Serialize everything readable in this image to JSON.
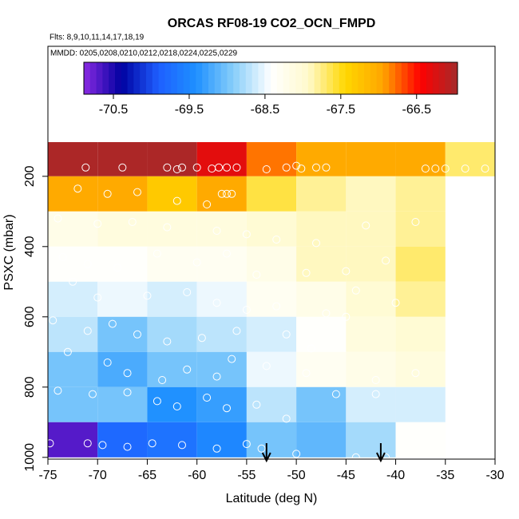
{
  "chart_data": {
    "type": "heatmap",
    "title": "ORCAS RF08-19 CO2_OCN_FMPD",
    "subtitle": "Flts: 8,9,10,11,14,17,18,19",
    "annotation": "MMDD: 0205,0208,0210,0212,0218,0224,0225,0229",
    "x_label": "Latitude (deg N)",
    "y_label": "PSXC (mbar)",
    "xlim": [
      -75,
      -30
    ],
    "xticks": [
      -75,
      -70,
      -65,
      -60,
      -55,
      -50,
      -45,
      -40,
      -35,
      -30
    ],
    "ylim": [
      -170,
      1005
    ],
    "yticks": [
      200,
      400,
      600,
      800,
      1000
    ],
    "zlim": [
      -70.89,
      -65.96
    ],
    "zticks": [
      -70.5,
      -69.5,
      -68.5,
      -67.5,
      -66.5
    ],
    "colormap": [
      "#8a2be2",
      "#0000a0",
      "#1e5fff",
      "#1e90ff",
      "#87cefa",
      "#ffffff",
      "#fffacd",
      "#ffd700",
      "#ffa500",
      "#ff0000",
      "#a52a2a"
    ],
    "x_edges": [
      -75,
      -70,
      -65,
      -60,
      -55,
      -50,
      -45,
      -40,
      -35,
      -30
    ],
    "y_edges": [
      100,
      200,
      300,
      400,
      500,
      600,
      700,
      800,
      900,
      1000
    ],
    "values": [
      [
        -66.0,
        -66.0,
        -66.0,
        -66.3,
        -66.8,
        -67.0,
        -67.0,
        -67.0,
        -67.7
      ],
      [
        -67.0,
        -67.0,
        -67.3,
        -67.0,
        -67.6,
        -67.8,
        -67.9,
        -67.8,
        null
      ],
      [
        -68.2,
        -68.1,
        -68.1,
        -68.1,
        -68.0,
        -67.9,
        -67.9,
        -67.8,
        null
      ],
      [
        -68.4,
        -68.4,
        -68.3,
        -68.3,
        -68.2,
        -67.9,
        -67.9,
        -67.7,
        null
      ],
      [
        -68.6,
        -68.5,
        -68.6,
        -68.5,
        -68.3,
        -68.2,
        -68.0,
        -67.8,
        null
      ],
      [
        -68.7,
        -69.0,
        -68.8,
        -68.7,
        -68.6,
        -68.4,
        -68.1,
        -68.0,
        null
      ],
      [
        -69.0,
        -69.2,
        -69.0,
        -69.0,
        -68.5,
        -68.3,
        -68.2,
        -68.1,
        null
      ],
      [
        -69.0,
        -69.0,
        -69.4,
        -69.3,
        -68.7,
        -69.0,
        -68.6,
        -68.6,
        null
      ],
      [
        -70.7,
        -69.8,
        -69.7,
        -69.5,
        -69.0,
        -69.1,
        -68.8,
        -68.4,
        null
      ]
    ],
    "points": {
      "x": [
        -71.2,
        -67.5,
        -63,
        -62,
        -61.5,
        -60,
        -58.5,
        -57.8,
        -57,
        -56,
        -53,
        -51,
        -50,
        -49.5,
        -48,
        -47,
        -37,
        -36,
        -35,
        -33,
        -31,
        -72,
        -69,
        -66,
        -62,
        -59,
        -57.5,
        -57,
        -56.5,
        -74,
        -70,
        -66.5,
        -63,
        -58,
        -55,
        -52,
        -48,
        -43,
        -38,
        -73.5,
        -71,
        -68,
        -64,
        -60,
        -57,
        -54,
        -49,
        -45,
        -41,
        -72.5,
        -70,
        -65,
        -61,
        -58,
        -55,
        -52,
        -47,
        -44,
        -40,
        -74.5,
        -71,
        -68.5,
        -66,
        -63,
        -59.5,
        -56,
        -51,
        -48.5,
        -45,
        -73,
        -69,
        -67,
        -63.5,
        -61,
        -58,
        -56.5,
        -53,
        -49,
        -42,
        -38,
        -74,
        -70.5,
        -67,
        -64,
        -62,
        -59,
        -57,
        -54,
        -51,
        -46,
        -42,
        -74.8,
        -71,
        -69.5,
        -67,
        -64.5,
        -61.5,
        -58,
        -55,
        -53.5,
        -50,
        -44,
        -41
      ],
      "y": [
        175,
        175,
        175,
        180,
        175,
        175,
        178,
        175,
        175,
        175,
        180,
        175,
        170,
        178,
        175,
        175,
        178,
        178,
        178,
        178,
        178,
        235,
        250,
        245,
        270,
        280,
        250,
        250,
        250,
        320,
        335,
        330,
        345,
        355,
        365,
        380,
        390,
        340,
        330,
        430,
        450,
        460,
        420,
        445,
        420,
        480,
        475,
        470,
        440,
        500,
        545,
        540,
        530,
        560,
        580,
        570,
        590,
        525,
        560,
        610,
        640,
        620,
        650,
        670,
        660,
        640,
        650,
        690,
        600,
        700,
        730,
        760,
        780,
        750,
        770,
        720,
        740,
        760,
        780,
        760,
        810,
        820,
        815,
        840,
        855,
        830,
        860,
        850,
        890,
        820,
        820,
        960,
        960,
        965,
        970,
        960,
        965,
        975,
        962,
        975,
        990,
        1000,
        1000
      ]
    },
    "markers_x": [
      -53,
      -41.5
    ]
  }
}
